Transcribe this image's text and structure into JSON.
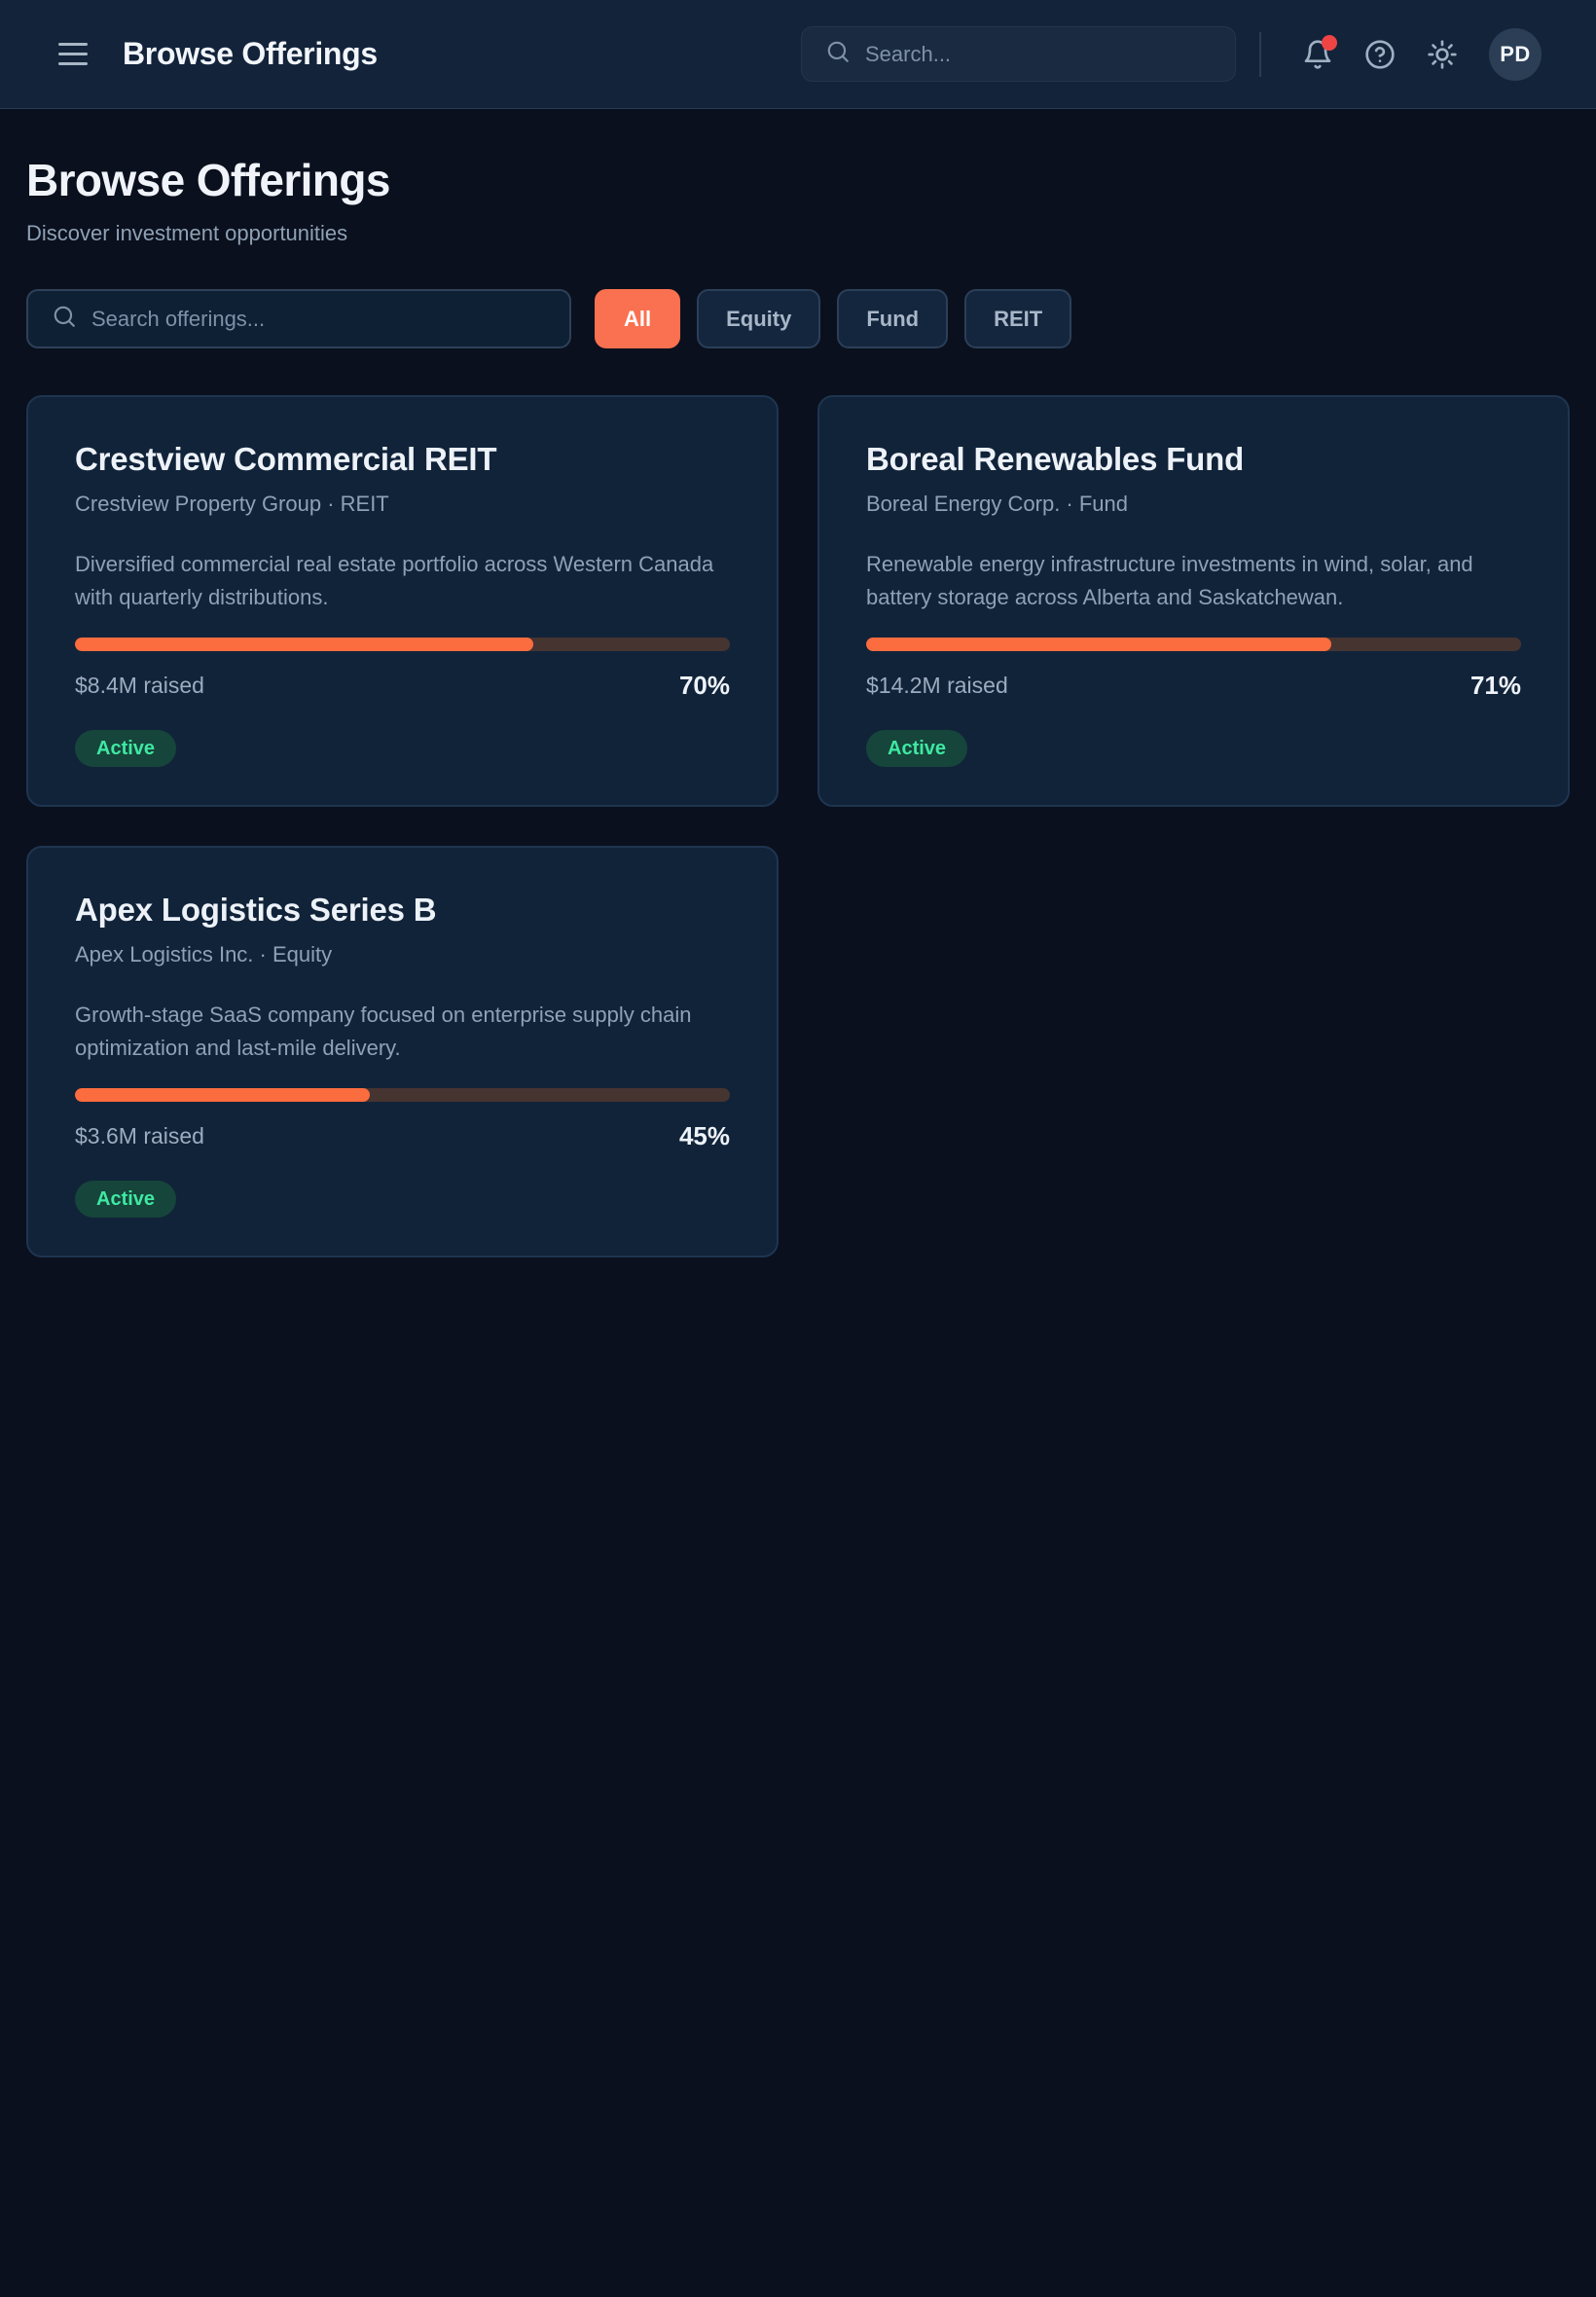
{
  "header": {
    "title": "Browse Offerings",
    "search_placeholder": "Search...",
    "avatar_initials": "PD",
    "icons": {
      "menu": "menu-icon",
      "search": "search-icon",
      "notifications": "bell-icon",
      "help": "help-circle-icon",
      "theme": "sun-icon"
    },
    "has_notification_dot": true
  },
  "page": {
    "title": "Browse Offerings",
    "subtitle": "Discover investment opportunities",
    "search_placeholder": "Search offerings...",
    "filters": [
      {
        "label": "All",
        "active": true
      },
      {
        "label": "Equity",
        "active": false
      },
      {
        "label": "Fund",
        "active": false
      },
      {
        "label": "REIT",
        "active": false
      }
    ]
  },
  "offerings": [
    {
      "title": "Crestview Commercial REIT",
      "issuer_line": "Crestview Property Group · REIT",
      "description": "Diversified commercial real estate portfolio across Western Canada with quarterly distributions.",
      "raised": "$8.4M raised",
      "percent": "70%",
      "progress": 70,
      "status": "Active"
    },
    {
      "title": "Boreal Renewables Fund",
      "issuer_line": "Boreal Energy Corp. · Fund",
      "description": "Renewable energy infrastructure investments in wind, solar, and battery storage across Alberta and Saskatchewan.",
      "raised": "$14.2M raised",
      "percent": "71%",
      "progress": 71,
      "status": "Active"
    },
    {
      "title": "Apex Logistics Series B",
      "issuer_line": "Apex Logistics Inc. · Equity",
      "description": "Growth-stage SaaS company focused on enterprise supply chain optimization and last-mile delivery.",
      "raised": "$3.6M raised",
      "percent": "45%",
      "progress": 45,
      "status": "Active"
    }
  ],
  "colors": {
    "page_bg": "#0a101d",
    "header_bg": "#13233a",
    "card_bg": "#112339",
    "accent_orange": "#f97150",
    "progress_fill": "#fb6c3f",
    "progress_track": "#463431",
    "badge_bg": "#16453b",
    "badge_text": "#3fe8a2",
    "notification_dot": "#ef4444"
  }
}
